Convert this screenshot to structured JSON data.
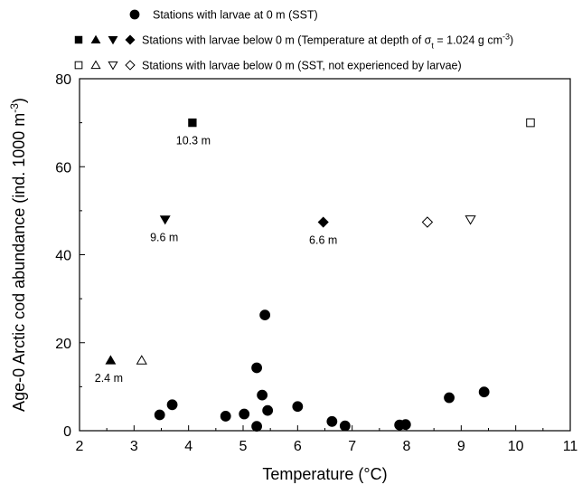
{
  "chart_data": {
    "type": "scatter",
    "xlabel": "Temperature (°C)",
    "ylabel_parts": [
      "Age-0 Arctic cod abundance (ind. 1000 m",
      "-3",
      ")"
    ],
    "xlim": [
      2,
      11
    ],
    "ylim": [
      0,
      80
    ],
    "xticks": [
      "2",
      "3",
      "4",
      "5",
      "6",
      "7",
      "8",
      "9",
      "10",
      "11"
    ],
    "yticks": [
      "0",
      "20",
      "40",
      "60",
      "80"
    ],
    "legend_position": "top",
    "legend": [
      {
        "symbols": [
          "filled-circle"
        ],
        "text_parts": [
          "Stations with larvae at 0 m (SST)"
        ]
      },
      {
        "symbols": [
          "filled-square",
          "filled-triangle-up",
          "filled-triangle-down",
          "filled-diamond"
        ],
        "text_parts": [
          "Stations with larvae below 0 m (Temperature at depth of σ",
          "t",
          " = 1.024 g cm",
          "-3",
          ")"
        ]
      },
      {
        "symbols": [
          "open-square",
          "open-triangle-up",
          "open-triangle-down",
          "open-diamond"
        ],
        "text_parts": [
          "Stations with larvae below 0 m (SST, not experienced by larvae)"
        ]
      }
    ],
    "series": [
      {
        "marker": "filled-circle",
        "points": [
          [
            3.47,
            3.6
          ],
          [
            3.7,
            5.9
          ],
          [
            4.68,
            3.3
          ],
          [
            5.02,
            3.8
          ],
          [
            5.25,
            1.0
          ],
          [
            5.25,
            14.3
          ],
          [
            5.35,
            8.1
          ],
          [
            5.4,
            26.3
          ],
          [
            5.45,
            4.6
          ],
          [
            6.0,
            5.5
          ],
          [
            6.63,
            2.1
          ],
          [
            6.87,
            1.1
          ],
          [
            7.87,
            1.3
          ],
          [
            7.98,
            1.4
          ],
          [
            8.78,
            7.5
          ],
          [
            9.42,
            8.8
          ]
        ]
      },
      {
        "marker": "filled-square",
        "points": [
          [
            4.07,
            70.0
          ]
        ]
      },
      {
        "marker": "filled-triangle-up",
        "points": [
          [
            2.57,
            16.0
          ]
        ]
      },
      {
        "marker": "filled-triangle-down",
        "points": [
          [
            3.57,
            48.0
          ]
        ]
      },
      {
        "marker": "filled-diamond",
        "points": [
          [
            6.47,
            47.4
          ]
        ]
      },
      {
        "marker": "open-square",
        "points": [
          [
            10.27,
            70.0
          ]
        ]
      },
      {
        "marker": "open-triangle-up",
        "points": [
          [
            3.14,
            16.0
          ]
        ]
      },
      {
        "marker": "open-triangle-down",
        "points": [
          [
            9.17,
            48.0
          ]
        ]
      },
      {
        "marker": "open-diamond",
        "points": [
          [
            8.38,
            47.4
          ]
        ]
      }
    ],
    "annotations": [
      {
        "text": "10.3 m",
        "x": 4.07,
        "y": 70.0
      },
      {
        "text": "9.6 m",
        "x": 3.57,
        "y": 48.0
      },
      {
        "text": "6.6 m",
        "x": 6.47,
        "y": 47.4
      },
      {
        "text": "2.4 m",
        "x": 2.57,
        "y": 16.0
      }
    ]
  }
}
